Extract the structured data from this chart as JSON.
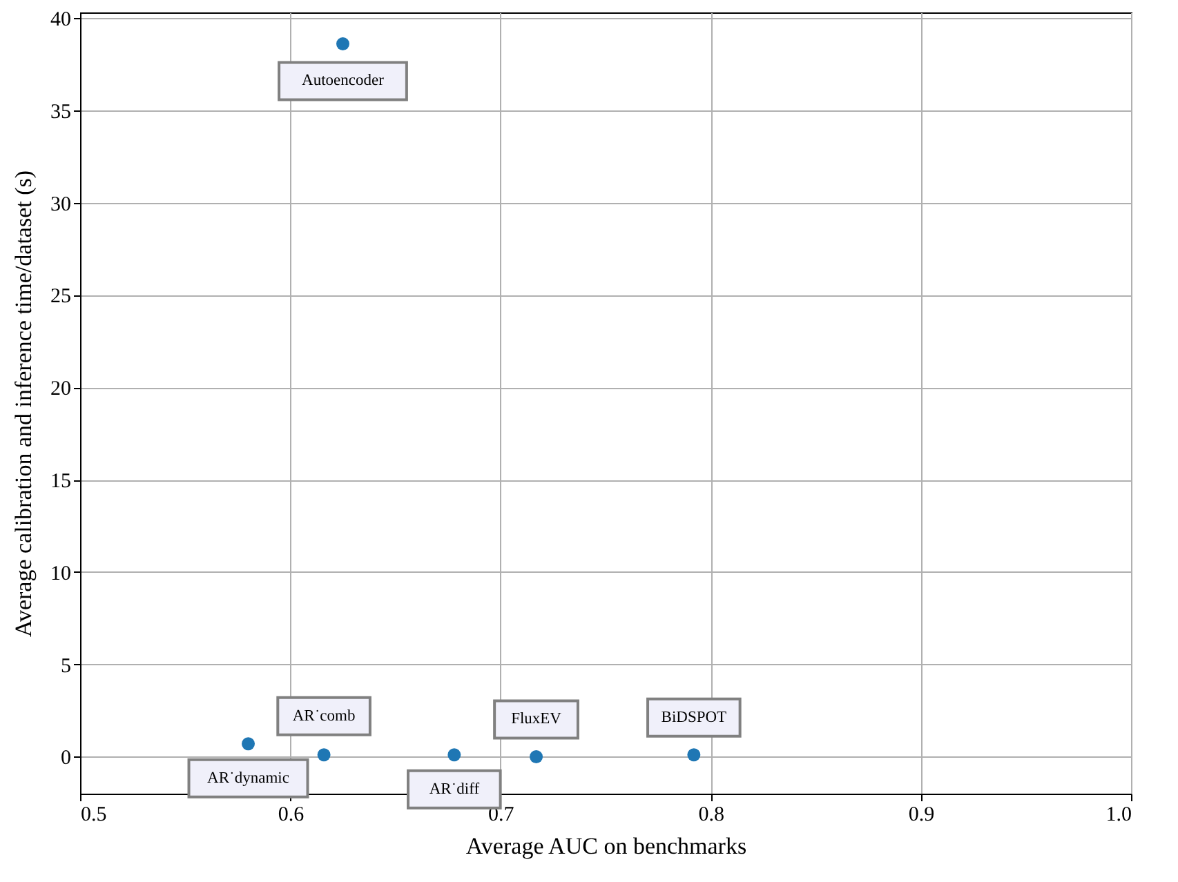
{
  "chart_data": {
    "type": "scatter",
    "xlabel": "Average AUC on benchmarks",
    "ylabel": "Average calibration and inference time/dataset (s)",
    "x": [
      0.625,
      0.58,
      0.616,
      0.678,
      0.717,
      0.792
    ],
    "series": [
      {
        "color": "#1f77b4",
        "values": [
          38.6,
          0.7,
          0.1,
          0.1,
          0.0,
          0.1
        ]
      }
    ],
    "annotations": [
      {
        "text": "Autoencoder",
        "x": 0.625,
        "y": 38.6
      },
      {
        "text": "AR˙dynamic",
        "x": 0.58,
        "y": 0.7
      },
      {
        "text": "AR˙comb",
        "x": 0.616,
        "y": 0.1
      },
      {
        "text": "AR˙diff",
        "x": 0.678,
        "y": 0.1
      },
      {
        "text": "FluxEV",
        "x": 0.717,
        "y": 0.0
      },
      {
        "text": "BiDSPOT",
        "x": 0.792,
        "y": 0.1
      }
    ],
    "xlim": [
      0.5,
      1.0
    ],
    "xticks": [
      0.5,
      0.6,
      0.7,
      0.8,
      0.9,
      {
        "value": 1.0,
        "label": "1.0"
      }
    ],
    "ylim": [
      -2,
      40.3
    ],
    "yticks": [
      0,
      5,
      10,
      15,
      20,
      25,
      30,
      35,
      40
    ],
    "grid": true,
    "marker": "circle"
  }
}
